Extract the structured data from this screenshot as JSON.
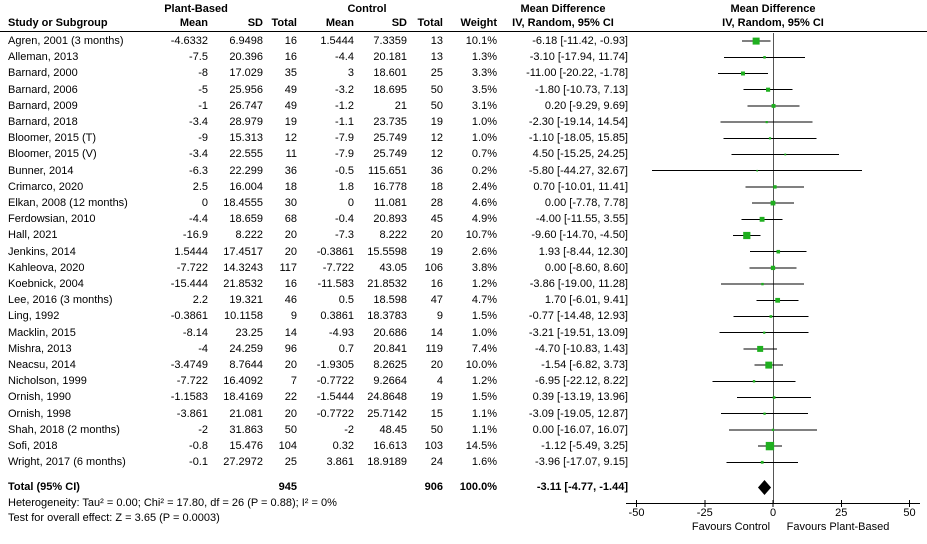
{
  "header": {
    "study_col": "Study or Subgroup",
    "group1": "Plant-Based",
    "group2": "Control",
    "mean": "Mean",
    "sd": "SD",
    "total": "Total",
    "weight": "Weight",
    "md_title": "Mean Difference",
    "md_subtitle": "IV, Random, 95% CI"
  },
  "chart_data": {
    "type": "forest",
    "effect_measure": "Mean Difference",
    "model": "IV, Random, 95% CI",
    "marker_color": "#1FAF1F",
    "diamond_color": "#000000",
    "axis": {
      "ticks": [
        -50,
        -25,
        0,
        25,
        50
      ],
      "min": -50,
      "max": 50,
      "left_label": "Favours Control",
      "right_label": "Favours Plant-Based"
    },
    "studies": [
      {
        "name": "Agren, 2001 (3 months)",
        "pb_mean": "-4.6332",
        "pb_sd": "6.9498",
        "pb_total": "16",
        "c_mean": "1.5444",
        "c_sd": "7.3359",
        "c_total": "13",
        "weight": "10.1%",
        "w": 10.1,
        "ci": "-6.18 [-11.42, -0.93]",
        "md": -6.18,
        "lo": -11.42,
        "hi": -0.93
      },
      {
        "name": "Alleman, 2013",
        "pb_mean": "-7.5",
        "pb_sd": "20.396",
        "pb_total": "16",
        "c_mean": "-4.4",
        "c_sd": "20.181",
        "c_total": "13",
        "weight": "1.3%",
        "w": 1.3,
        "ci": "-3.10 [-17.94, 11.74]",
        "md": -3.1,
        "lo": -17.94,
        "hi": 11.74
      },
      {
        "name": "Barnard, 2000",
        "pb_mean": "-8",
        "pb_sd": "17.029",
        "pb_total": "35",
        "c_mean": "3",
        "c_sd": "18.601",
        "c_total": "25",
        "weight": "3.3%",
        "w": 3.3,
        "ci": "-11.00 [-20.22, -1.78]",
        "md": -11.0,
        "lo": -20.22,
        "hi": -1.78
      },
      {
        "name": "Barnard, 2006",
        "pb_mean": "-5",
        "pb_sd": "25.956",
        "pb_total": "49",
        "c_mean": "-3.2",
        "c_sd": "18.695",
        "c_total": "50",
        "weight": "3.5%",
        "w": 3.5,
        "ci": "-1.80 [-10.73, 7.13]",
        "md": -1.8,
        "lo": -10.73,
        "hi": 7.13
      },
      {
        "name": "Barnard, 2009",
        "pb_mean": "-1",
        "pb_sd": "26.747",
        "pb_total": "49",
        "c_mean": "-1.2",
        "c_sd": "21",
        "c_total": "50",
        "weight": "3.1%",
        "w": 3.1,
        "ci": "0.20 [-9.29, 9.69]",
        "md": 0.2,
        "lo": -9.29,
        "hi": 9.69
      },
      {
        "name": "Barnard, 2018",
        "pb_mean": "-3.4",
        "pb_sd": "28.979",
        "pb_total": "19",
        "c_mean": "-1.1",
        "c_sd": "23.735",
        "c_total": "19",
        "weight": "1.0%",
        "w": 1.0,
        "ci": "-2.30 [-19.14, 14.54]",
        "md": -2.3,
        "lo": -19.14,
        "hi": 14.54
      },
      {
        "name": "Bloomer, 2015 (T)",
        "pb_mean": "-9",
        "pb_sd": "15.313",
        "pb_total": "12",
        "c_mean": "-7.9",
        "c_sd": "25.749",
        "c_total": "12",
        "weight": "1.0%",
        "w": 1.0,
        "ci": "-1.10 [-18.05, 15.85]",
        "md": -1.1,
        "lo": -18.05,
        "hi": 15.85
      },
      {
        "name": "Bloomer, 2015 (V)",
        "pb_mean": "-3.4",
        "pb_sd": "22.555",
        "pb_total": "11",
        "c_mean": "-7.9",
        "c_sd": "25.749",
        "c_total": "12",
        "weight": "0.7%",
        "w": 0.7,
        "ci": "4.50 [-15.25, 24.25]",
        "md": 4.5,
        "lo": -15.25,
        "hi": 24.25
      },
      {
        "name": "Bunner, 2014",
        "pb_mean": "-6.3",
        "pb_sd": "22.299",
        "pb_total": "36",
        "c_mean": "-0.5",
        "c_sd": "115.651",
        "c_total": "36",
        "weight": "0.2%",
        "w": 0.2,
        "ci": "-5.80 [-44.27, 32.67]",
        "md": -5.8,
        "lo": -44.27,
        "hi": 32.67
      },
      {
        "name": "Crimarco, 2020",
        "pb_mean": "2.5",
        "pb_sd": "16.004",
        "pb_total": "18",
        "c_mean": "1.8",
        "c_sd": "16.778",
        "c_total": "18",
        "weight": "2.4%",
        "w": 2.4,
        "ci": "0.70 [-10.01, 11.41]",
        "md": 0.7,
        "lo": -10.01,
        "hi": 11.41
      },
      {
        "name": "Elkan, 2008 (12 months)",
        "pb_mean": "0",
        "pb_sd": "18.4555",
        "pb_total": "30",
        "c_mean": "0",
        "c_sd": "11.081",
        "c_total": "28",
        "weight": "4.6%",
        "w": 4.6,
        "ci": "0.00 [-7.78, 7.78]",
        "md": 0.0,
        "lo": -7.78,
        "hi": 7.78
      },
      {
        "name": "Ferdowsian, 2010",
        "pb_mean": "-4.4",
        "pb_sd": "18.659",
        "pb_total": "68",
        "c_mean": "-0.4",
        "c_sd": "20.893",
        "c_total": "45",
        "weight": "4.9%",
        "w": 4.9,
        "ci": "-4.00 [-11.55, 3.55]",
        "md": -4.0,
        "lo": -11.55,
        "hi": 3.55
      },
      {
        "name": "Hall, 2021",
        "pb_mean": "-16.9",
        "pb_sd": "8.222",
        "pb_total": "20",
        "c_mean": "-7.3",
        "c_sd": "8.222",
        "c_total": "20",
        "weight": "10.7%",
        "w": 10.7,
        "ci": "-9.60 [-14.70, -4.50]",
        "md": -9.6,
        "lo": -14.7,
        "hi": -4.5
      },
      {
        "name": "Jenkins, 2014",
        "pb_mean": "1.5444",
        "pb_sd": "17.4517",
        "pb_total": "20",
        "c_mean": "-0.3861",
        "c_sd": "15.5598",
        "c_total": "19",
        "weight": "2.6%",
        "w": 2.6,
        "ci": "1.93 [-8.44, 12.30]",
        "md": 1.93,
        "lo": -8.44,
        "hi": 12.3
      },
      {
        "name": "Kahleova, 2020",
        "pb_mean": "-7.722",
        "pb_sd": "14.3243",
        "pb_total": "117",
        "c_mean": "-7.722",
        "c_sd": "43.05",
        "c_total": "106",
        "weight": "3.8%",
        "w": 3.8,
        "ci": "0.00 [-8.60, 8.60]",
        "md": 0.0,
        "lo": -8.6,
        "hi": 8.6
      },
      {
        "name": "Koebnick, 2004",
        "pb_mean": "-15.444",
        "pb_sd": "21.8532",
        "pb_total": "16",
        "c_mean": "-11.583",
        "c_sd": "21.8532",
        "c_total": "16",
        "weight": "1.2%",
        "w": 1.2,
        "ci": "-3.86 [-19.00, 11.28]",
        "md": -3.86,
        "lo": -19.0,
        "hi": 11.28
      },
      {
        "name": "Lee, 2016 (3 months)",
        "pb_mean": "2.2",
        "pb_sd": "19.321",
        "pb_total": "46",
        "c_mean": "0.5",
        "c_sd": "18.598",
        "c_total": "47",
        "weight": "4.7%",
        "w": 4.7,
        "ci": "1.70 [-6.01, 9.41]",
        "md": 1.7,
        "lo": -6.01,
        "hi": 9.41
      },
      {
        "name": "Ling, 1992",
        "pb_mean": "-0.3861",
        "pb_sd": "10.1158",
        "pb_total": "9",
        "c_mean": "0.3861",
        "c_sd": "18.3783",
        "c_total": "9",
        "weight": "1.5%",
        "w": 1.5,
        "ci": "-0.77 [-14.48, 12.93]",
        "md": -0.77,
        "lo": -14.48,
        "hi": 12.93
      },
      {
        "name": "Macklin, 2015",
        "pb_mean": "-8.14",
        "pb_sd": "23.25",
        "pb_total": "14",
        "c_mean": "-4.93",
        "c_sd": "20.686",
        "c_total": "14",
        "weight": "1.0%",
        "w": 1.0,
        "ci": "-3.21 [-19.51, 13.09]",
        "md": -3.21,
        "lo": -19.51,
        "hi": 13.09
      },
      {
        "name": "Mishra, 2013",
        "pb_mean": "-4",
        "pb_sd": "24.259",
        "pb_total": "96",
        "c_mean": "0.7",
        "c_sd": "20.841",
        "c_total": "119",
        "weight": "7.4%",
        "w": 7.4,
        "ci": "-4.70 [-10.83, 1.43]",
        "md": -4.7,
        "lo": -10.83,
        "hi": 1.43
      },
      {
        "name": "Neacsu, 2014",
        "pb_mean": "-3.4749",
        "pb_sd": "8.7644",
        "pb_total": "20",
        "c_mean": "-1.9305",
        "c_sd": "8.2625",
        "c_total": "20",
        "weight": "10.0%",
        "w": 10.0,
        "ci": "-1.54 [-6.82, 3.73]",
        "md": -1.54,
        "lo": -6.82,
        "hi": 3.73
      },
      {
        "name": "Nicholson, 1999",
        "pb_mean": "-7.722",
        "pb_sd": "16.4092",
        "pb_total": "7",
        "c_mean": "-0.7722",
        "c_sd": "9.2664",
        "c_total": "4",
        "weight": "1.2%",
        "w": 1.2,
        "ci": "-6.95 [-22.12, 8.22]",
        "md": -6.95,
        "lo": -22.12,
        "hi": 8.22
      },
      {
        "name": "Ornish, 1990",
        "pb_mean": "-1.1583",
        "pb_sd": "18.4169",
        "pb_total": "22",
        "c_mean": "-1.5444",
        "c_sd": "24.8648",
        "c_total": "19",
        "weight": "1.5%",
        "w": 1.5,
        "ci": "0.39 [-13.19, 13.96]",
        "md": 0.39,
        "lo": -13.19,
        "hi": 13.96
      },
      {
        "name": "Ornish, 1998",
        "pb_mean": "-3.861",
        "pb_sd": "21.081",
        "pb_total": "20",
        "c_mean": "-0.7722",
        "c_sd": "25.7142",
        "c_total": "15",
        "weight": "1.1%",
        "w": 1.1,
        "ci": "-3.09 [-19.05, 12.87]",
        "md": -3.09,
        "lo": -19.05,
        "hi": 12.87
      },
      {
        "name": "Shah, 2018 (2 months)",
        "pb_mean": "-2",
        "pb_sd": "31.863",
        "pb_total": "50",
        "c_mean": "-2",
        "c_sd": "48.45",
        "c_total": "50",
        "weight": "1.1%",
        "w": 1.1,
        "ci": "0.00 [-16.07, 16.07]",
        "md": 0.0,
        "lo": -16.07,
        "hi": 16.07
      },
      {
        "name": "Sofi, 2018",
        "pb_mean": "-0.8",
        "pb_sd": "15.476",
        "pb_total": "104",
        "c_mean": "0.32",
        "c_sd": "16.613",
        "c_total": "103",
        "weight": "14.5%",
        "w": 14.5,
        "ci": "-1.12 [-5.49, 3.25]",
        "md": -1.12,
        "lo": -5.49,
        "hi": 3.25
      },
      {
        "name": "Wright, 2017 (6 months)",
        "pb_mean": "-0.1",
        "pb_sd": "27.2972",
        "pb_total": "25",
        "c_mean": "3.861",
        "c_sd": "18.9189",
        "c_total": "24",
        "weight": "1.6%",
        "w": 1.6,
        "ci": "-3.96 [-17.07, 9.15]",
        "md": -3.96,
        "lo": -17.07,
        "hi": 9.15
      }
    ],
    "total": {
      "label": "Total (95% CI)",
      "pb_total": "945",
      "ctrl_total": "906",
      "weight": "100.0%",
      "ci": "-3.11 [-4.77, -1.44]",
      "md": -3.11,
      "lo": -4.77,
      "hi": -1.44
    },
    "heterogeneity": "Heterogeneity: Tau² = 0.00; Chi² = 17.80, df = 26 (P = 0.88); I² = 0%",
    "overall_effect": "Test for overall effect: Z = 3.65 (P = 0.0003)"
  }
}
